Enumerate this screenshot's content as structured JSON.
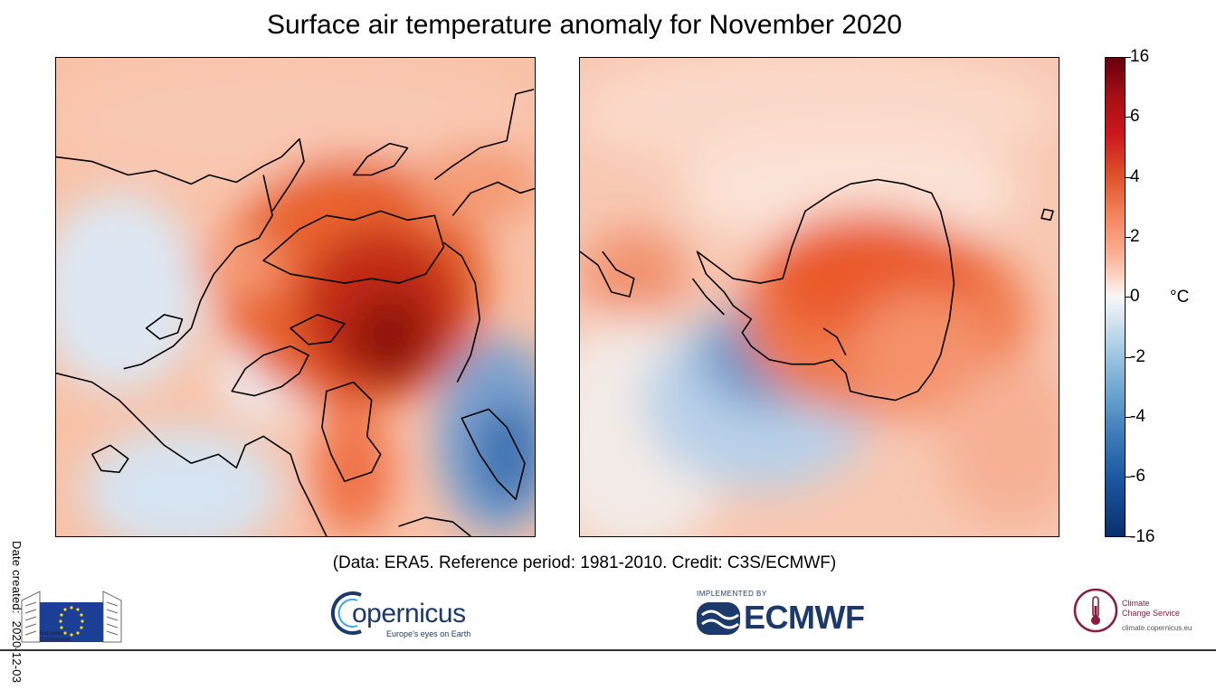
{
  "title": "Surface air temperature anomaly for November 2020",
  "date_label": "Date created:",
  "date_value": "2020-12-03",
  "credit": "(Data: ERA5.  Reference period: 1981-2010.  Credit: C3S/ECMWF)",
  "colorbar": {
    "unit": "°C",
    "ticks": [
      "16",
      "6",
      "4",
      "2",
      "0",
      "-2",
      "-4",
      "-6",
      "-16"
    ],
    "colors": [
      "#67000d",
      "#a50f15",
      "#cb181d",
      "#e0542c",
      "#f4845d",
      "#fbb093",
      "#fcd7c6",
      "#f7f7f7",
      "#d4e3f0",
      "#9ec8e2",
      "#6aa4cf",
      "#3c7bb8",
      "#1b57a0",
      "#08306b"
    ]
  },
  "maps": [
    {
      "hemisphere": "northern",
      "projection": "polar stereographic"
    },
    {
      "hemisphere": "southern",
      "projection": "polar stereographic"
    }
  ],
  "logos": {
    "ec_line1": "European",
    "ec_line2": "Commission",
    "copernicus": "opernicus",
    "copernicus_tagline": "Europe's eyes on Earth",
    "ecmwf_implemented": "IMPLEMENTED BY",
    "ecmwf": "ECMWF",
    "c3s_line1": "Climate",
    "c3s_line2": "Change Service",
    "c3s_url": "climate.copernicus.eu"
  }
}
